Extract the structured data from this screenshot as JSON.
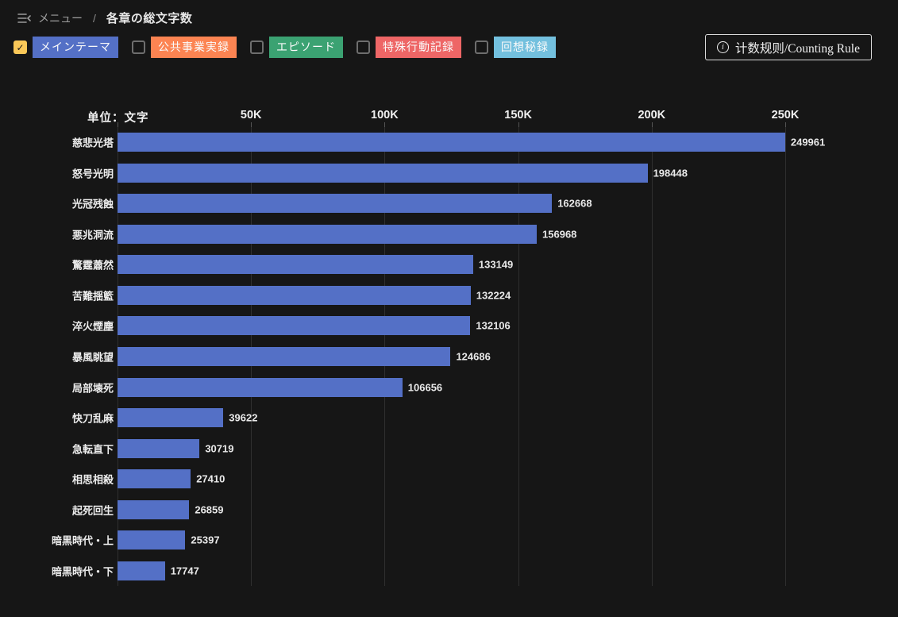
{
  "header": {
    "menu_icon": "collapse-menu-icon",
    "menu_label": "メニュー",
    "separator": "/",
    "page_title": "各章の総文字数"
  },
  "filters": [
    {
      "label": "メインテーマ",
      "color": "#5470c6",
      "checked": true
    },
    {
      "label": "公共事業実録",
      "color": "#fc8452",
      "checked": false
    },
    {
      "label": "エピソード",
      "color": "#3ba272",
      "checked": false
    },
    {
      "label": "特殊行動記録",
      "color": "#ee6666",
      "checked": false
    },
    {
      "label": "回想秘録",
      "color": "#73c0de",
      "checked": false
    }
  ],
  "counting_rule_button": {
    "icon": "info-icon",
    "label": "计数规则/Counting Rule"
  },
  "colors": {
    "background": "#161616",
    "bar": "#5470c6",
    "checkbox_checked": "#fac858",
    "gridline": "#2f2f2f"
  },
  "chart_data": {
    "type": "bar",
    "orientation": "horizontal",
    "title": "各章の総文字数",
    "unit_label": "单位：文字",
    "xlabel": "",
    "ylabel": "",
    "xlim": [
      0,
      250000
    ],
    "x_axis_position": "top",
    "x_ticks": [
      "50K",
      "100K",
      "150K",
      "200K",
      "250K"
    ],
    "grid": true,
    "legend_position": "none",
    "bar_color": "#5470c6",
    "categories": [
      "慈悲光塔",
      "怒号光明",
      "光冠残蝕",
      "悪兆洞流",
      "驚霆蕭然",
      "苦難揺籃",
      "淬火煙塵",
      "暴風眺望",
      "局部壊死",
      "快刀乱麻",
      "急転直下",
      "相思相殺",
      "起死回生",
      "暗黒時代・上",
      "暗黒時代・下"
    ],
    "values": [
      249961,
      198448,
      162668,
      156968,
      133149,
      132224,
      132106,
      124686,
      106656,
      39622,
      30719,
      27410,
      26859,
      25397,
      17747
    ]
  }
}
